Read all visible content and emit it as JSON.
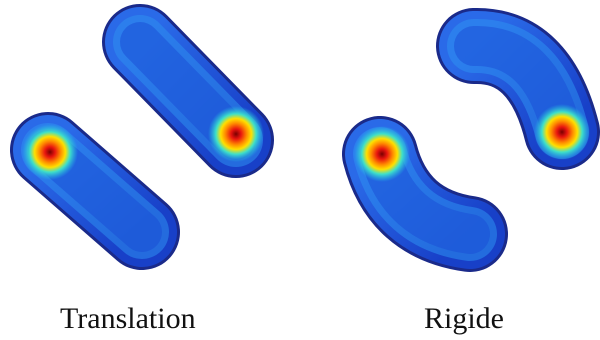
{
  "panels": [
    {
      "caption": "Translation",
      "motion": "translation",
      "heatmap": "jet"
    },
    {
      "caption": "Rigide",
      "motion": "rigid",
      "heatmap": "jet"
    }
  ],
  "colors": {
    "outline": "#1a2a8a",
    "body_blue": "#1a4cd6",
    "mid_cyan": "#22c3e6",
    "hot_yellow": "#ffe000",
    "hot_red": "#e8150f",
    "background": "#ffffff"
  }
}
